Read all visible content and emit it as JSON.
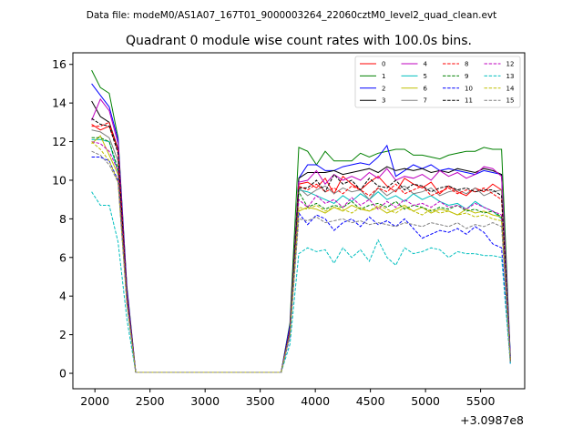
{
  "header_text": "Data file: modeM0/AS1A07_167T01_9000003264_22060cztM0_level2_quad_clean.evt",
  "chart_data": {
    "type": "line",
    "title": "Quadrant 0 module wise count rates with 100.0s bins.",
    "xlabel": "",
    "ylabel": "",
    "x_offset_label": "+3.0987e8",
    "xlim": [
      1800,
      5900
    ],
    "ylim": [
      -0.8,
      16.6
    ],
    "x_ticks": [
      2000,
      2500,
      3000,
      3500,
      4000,
      4500,
      5000,
      5500
    ],
    "y_ticks": [
      0,
      2,
      4,
      6,
      8,
      10,
      12,
      14,
      16
    ],
    "grid": false,
    "legend_position": "top-right",
    "x": [
      1970,
      2050,
      2130,
      2210,
      2290,
      2370,
      3690,
      3770,
      3850,
      3930,
      4010,
      4090,
      4170,
      4250,
      4330,
      4410,
      4490,
      4570,
      4650,
      4730,
      4810,
      4890,
      4970,
      5050,
      5130,
      5210,
      5290,
      5370,
      5450,
      5530,
      5610,
      5690,
      5770
    ],
    "series": [
      {
        "name": "0",
        "color": "#ff0000",
        "dash": false,
        "values": [
          12.9,
          12.6,
          12.8,
          11.6,
          4.0,
          0.05,
          0.05,
          2.2,
          9.8,
          9.9,
          9.6,
          10.1,
          9.3,
          10.2,
          9.8,
          9.5,
          9.9,
          10.2,
          9.7,
          9.4,
          10.1,
          9.8,
          9.6,
          9.9,
          9.3,
          9.7,
          9.4,
          9.2,
          9.6,
          9.4,
          9.8,
          9.5,
          0.7
        ]
      },
      {
        "name": "1",
        "color": "#008000",
        "dash": false,
        "values": [
          15.7,
          14.8,
          14.5,
          12.2,
          4.5,
          0.05,
          0.05,
          2.6,
          11.7,
          11.5,
          10.8,
          11.5,
          11.0,
          11.0,
          11.0,
          11.4,
          11.2,
          11.4,
          11.5,
          11.6,
          11.6,
          11.3,
          11.3,
          11.2,
          11.1,
          11.3,
          11.4,
          11.5,
          11.5,
          11.7,
          11.6,
          11.6,
          0.8
        ]
      },
      {
        "name": "2",
        "color": "#0000ff",
        "dash": false,
        "values": [
          15.0,
          14.4,
          13.8,
          12.1,
          4.4,
          0.05,
          0.05,
          2.5,
          10.1,
          10.8,
          10.8,
          10.5,
          10.5,
          10.7,
          10.8,
          10.9,
          10.8,
          11.2,
          11.8,
          10.2,
          10.5,
          10.8,
          10.6,
          10.8,
          10.5,
          10.6,
          10.5,
          10.4,
          10.3,
          10.5,
          10.4,
          10.3,
          0.9
        ]
      },
      {
        "name": "3",
        "color": "#000000",
        "dash": false,
        "values": [
          14.1,
          13.3,
          13.0,
          11.6,
          4.1,
          0.05,
          0.05,
          2.3,
          10.1,
          10.4,
          10.4,
          10.4,
          10.5,
          10.3,
          10.4,
          10.5,
          10.6,
          10.4,
          10.7,
          10.5,
          10.6,
          10.5,
          10.6,
          10.4,
          10.5,
          10.4,
          10.6,
          10.5,
          10.4,
          10.6,
          10.5,
          10.3,
          0.6
        ]
      },
      {
        "name": "4",
        "color": "#bf00bf",
        "dash": false,
        "values": [
          13.1,
          14.2,
          13.6,
          11.9,
          4.2,
          0.05,
          0.05,
          2.3,
          9.9,
          10.0,
          10.5,
          9.8,
          10.3,
          10.0,
          10.2,
          10.0,
          10.4,
          10.1,
          10.6,
          10.0,
          10.2,
          10.1,
          10.3,
          10.0,
          10.5,
          10.2,
          10.4,
          10.1,
          10.3,
          10.7,
          10.6,
          10.2,
          0.7
        ]
      },
      {
        "name": "5",
        "color": "#00bfbf",
        "dash": false,
        "values": [
          12.1,
          12.1,
          12.0,
          10.4,
          3.8,
          0.05,
          0.05,
          2.1,
          9.5,
          9.4,
          9.2,
          9.0,
          8.8,
          9.2,
          8.9,
          9.3,
          9.0,
          9.4,
          9.0,
          9.2,
          8.9,
          9.3,
          9.0,
          9.2,
          8.9,
          8.7,
          8.8,
          8.5,
          8.9,
          8.6,
          8.4,
          8.0,
          0.6
        ]
      },
      {
        "name": "6",
        "color": "#bfbf00",
        "dash": false,
        "values": [
          11.9,
          12.3,
          11.3,
          10.3,
          3.7,
          0.05,
          0.05,
          2.0,
          8.4,
          8.6,
          8.5,
          8.3,
          8.6,
          8.4,
          8.7,
          8.5,
          8.4,
          8.6,
          8.3,
          8.5,
          8.7,
          8.4,
          8.6,
          8.3,
          8.5,
          8.4,
          8.2,
          8.5,
          8.3,
          8.4,
          8.2,
          8.1,
          0.6
        ]
      },
      {
        "name": "7",
        "color": "#808080",
        "dash": false,
        "values": [
          12.6,
          12.5,
          12.2,
          11.0,
          3.9,
          0.05,
          0.05,
          2.2,
          9.6,
          9.2,
          9.5,
          9.7,
          9.3,
          9.6,
          9.4,
          9.5,
          9.0,
          9.6,
          9.2,
          9.5,
          9.7,
          9.3,
          9.4,
          9.6,
          9.2,
          9.4,
          9.5,
          9.3,
          9.6,
          9.2,
          9.4,
          9.5,
          0.6
        ]
      },
      {
        "name": "8",
        "color": "#ff0000",
        "dash": true,
        "values": [
          12.8,
          12.8,
          13.0,
          11.5,
          4.0,
          0.05,
          0.05,
          2.2,
          9.7,
          9.5,
          9.8,
          9.4,
          9.6,
          9.3,
          9.7,
          9.5,
          9.2,
          9.6,
          9.4,
          9.8,
          9.3,
          9.5,
          9.7,
          9.2,
          9.4,
          9.6,
          9.3,
          9.5,
          9.4,
          9.6,
          9.3,
          9.0,
          0.6
        ]
      },
      {
        "name": "9",
        "color": "#008000",
        "dash": true,
        "values": [
          12.2,
          12.2,
          12.0,
          10.6,
          3.8,
          0.05,
          0.05,
          2.1,
          9.4,
          8.6,
          8.8,
          8.5,
          8.7,
          8.6,
          8.9,
          8.5,
          8.7,
          8.8,
          8.6,
          8.9,
          8.5,
          8.7,
          8.6,
          8.4,
          8.6,
          8.5,
          8.7,
          8.4,
          8.5,
          8.3,
          8.4,
          8.1,
          0.6
        ]
      },
      {
        "name": "10",
        "color": "#0000ff",
        "dash": true,
        "values": [
          11.2,
          11.2,
          11.0,
          10.0,
          3.6,
          0.05,
          0.05,
          1.9,
          8.3,
          7.7,
          8.2,
          8.0,
          7.4,
          7.8,
          8.0,
          7.6,
          8.1,
          7.7,
          7.9,
          7.6,
          8.0,
          7.5,
          7.0,
          7.2,
          7.4,
          7.3,
          7.5,
          7.2,
          7.6,
          7.3,
          6.7,
          6.5,
          0.5
        ]
      },
      {
        "name": "11",
        "color": "#000000",
        "dash": true,
        "values": [
          13.2,
          12.9,
          12.8,
          11.4,
          4.0,
          0.05,
          0.05,
          2.2,
          9.6,
          9.6,
          10.0,
          9.4,
          10.3,
          9.8,
          10.0,
          9.5,
          10.1,
          9.7,
          9.6,
          10.0,
          9.5,
          9.8,
          9.7,
          9.4,
          9.6,
          9.7,
          9.5,
          9.6,
          9.4,
          9.5,
          9.5,
          9.2,
          0.6
        ]
      },
      {
        "name": "12",
        "color": "#bf00bf",
        "dash": true,
        "values": [
          12.0,
          11.9,
          11.5,
          10.5,
          3.8,
          0.05,
          0.05,
          2.1,
          9.0,
          8.6,
          9.2,
          8.8,
          9.0,
          8.6,
          9.1,
          8.7,
          9.0,
          8.5,
          8.9,
          8.6,
          9.0,
          8.7,
          8.8,
          8.6,
          8.9,
          8.6,
          8.7,
          8.5,
          8.8,
          8.6,
          8.4,
          8.2,
          0.6
        ]
      },
      {
        "name": "13",
        "color": "#00bfbf",
        "dash": true,
        "values": [
          9.4,
          8.7,
          8.7,
          6.8,
          2.8,
          0.05,
          0.05,
          1.5,
          6.2,
          6.5,
          6.3,
          6.4,
          5.7,
          6.5,
          6.0,
          6.4,
          5.8,
          6.9,
          6.0,
          5.6,
          6.5,
          6.2,
          6.3,
          6.5,
          6.4,
          6.0,
          6.3,
          6.2,
          6.2,
          6.1,
          6.1,
          6.0,
          0.5
        ]
      },
      {
        "name": "14",
        "color": "#bfbf00",
        "dash": true,
        "values": [
          12.0,
          11.6,
          11.0,
          9.9,
          3.6,
          0.05,
          0.05,
          2.0,
          8.6,
          8.5,
          8.7,
          8.4,
          8.6,
          8.5,
          8.3,
          8.6,
          8.4,
          8.7,
          8.5,
          8.3,
          8.6,
          8.4,
          8.2,
          8.5,
          8.3,
          8.4,
          8.2,
          8.3,
          8.1,
          8.2,
          8.0,
          7.9,
          0.6
        ]
      },
      {
        "name": "15",
        "color": "#808080",
        "dash": true,
        "values": [
          11.5,
          11.3,
          10.8,
          9.9,
          3.6,
          0.05,
          0.05,
          2.0,
          8.0,
          7.9,
          8.1,
          7.8,
          7.9,
          8.0,
          7.8,
          7.9,
          7.7,
          7.8,
          7.7,
          7.6,
          7.8,
          7.7,
          7.6,
          7.8,
          7.7,
          7.6,
          7.8,
          7.5,
          7.7,
          7.6,
          7.8,
          7.6,
          0.6
        ]
      }
    ]
  }
}
